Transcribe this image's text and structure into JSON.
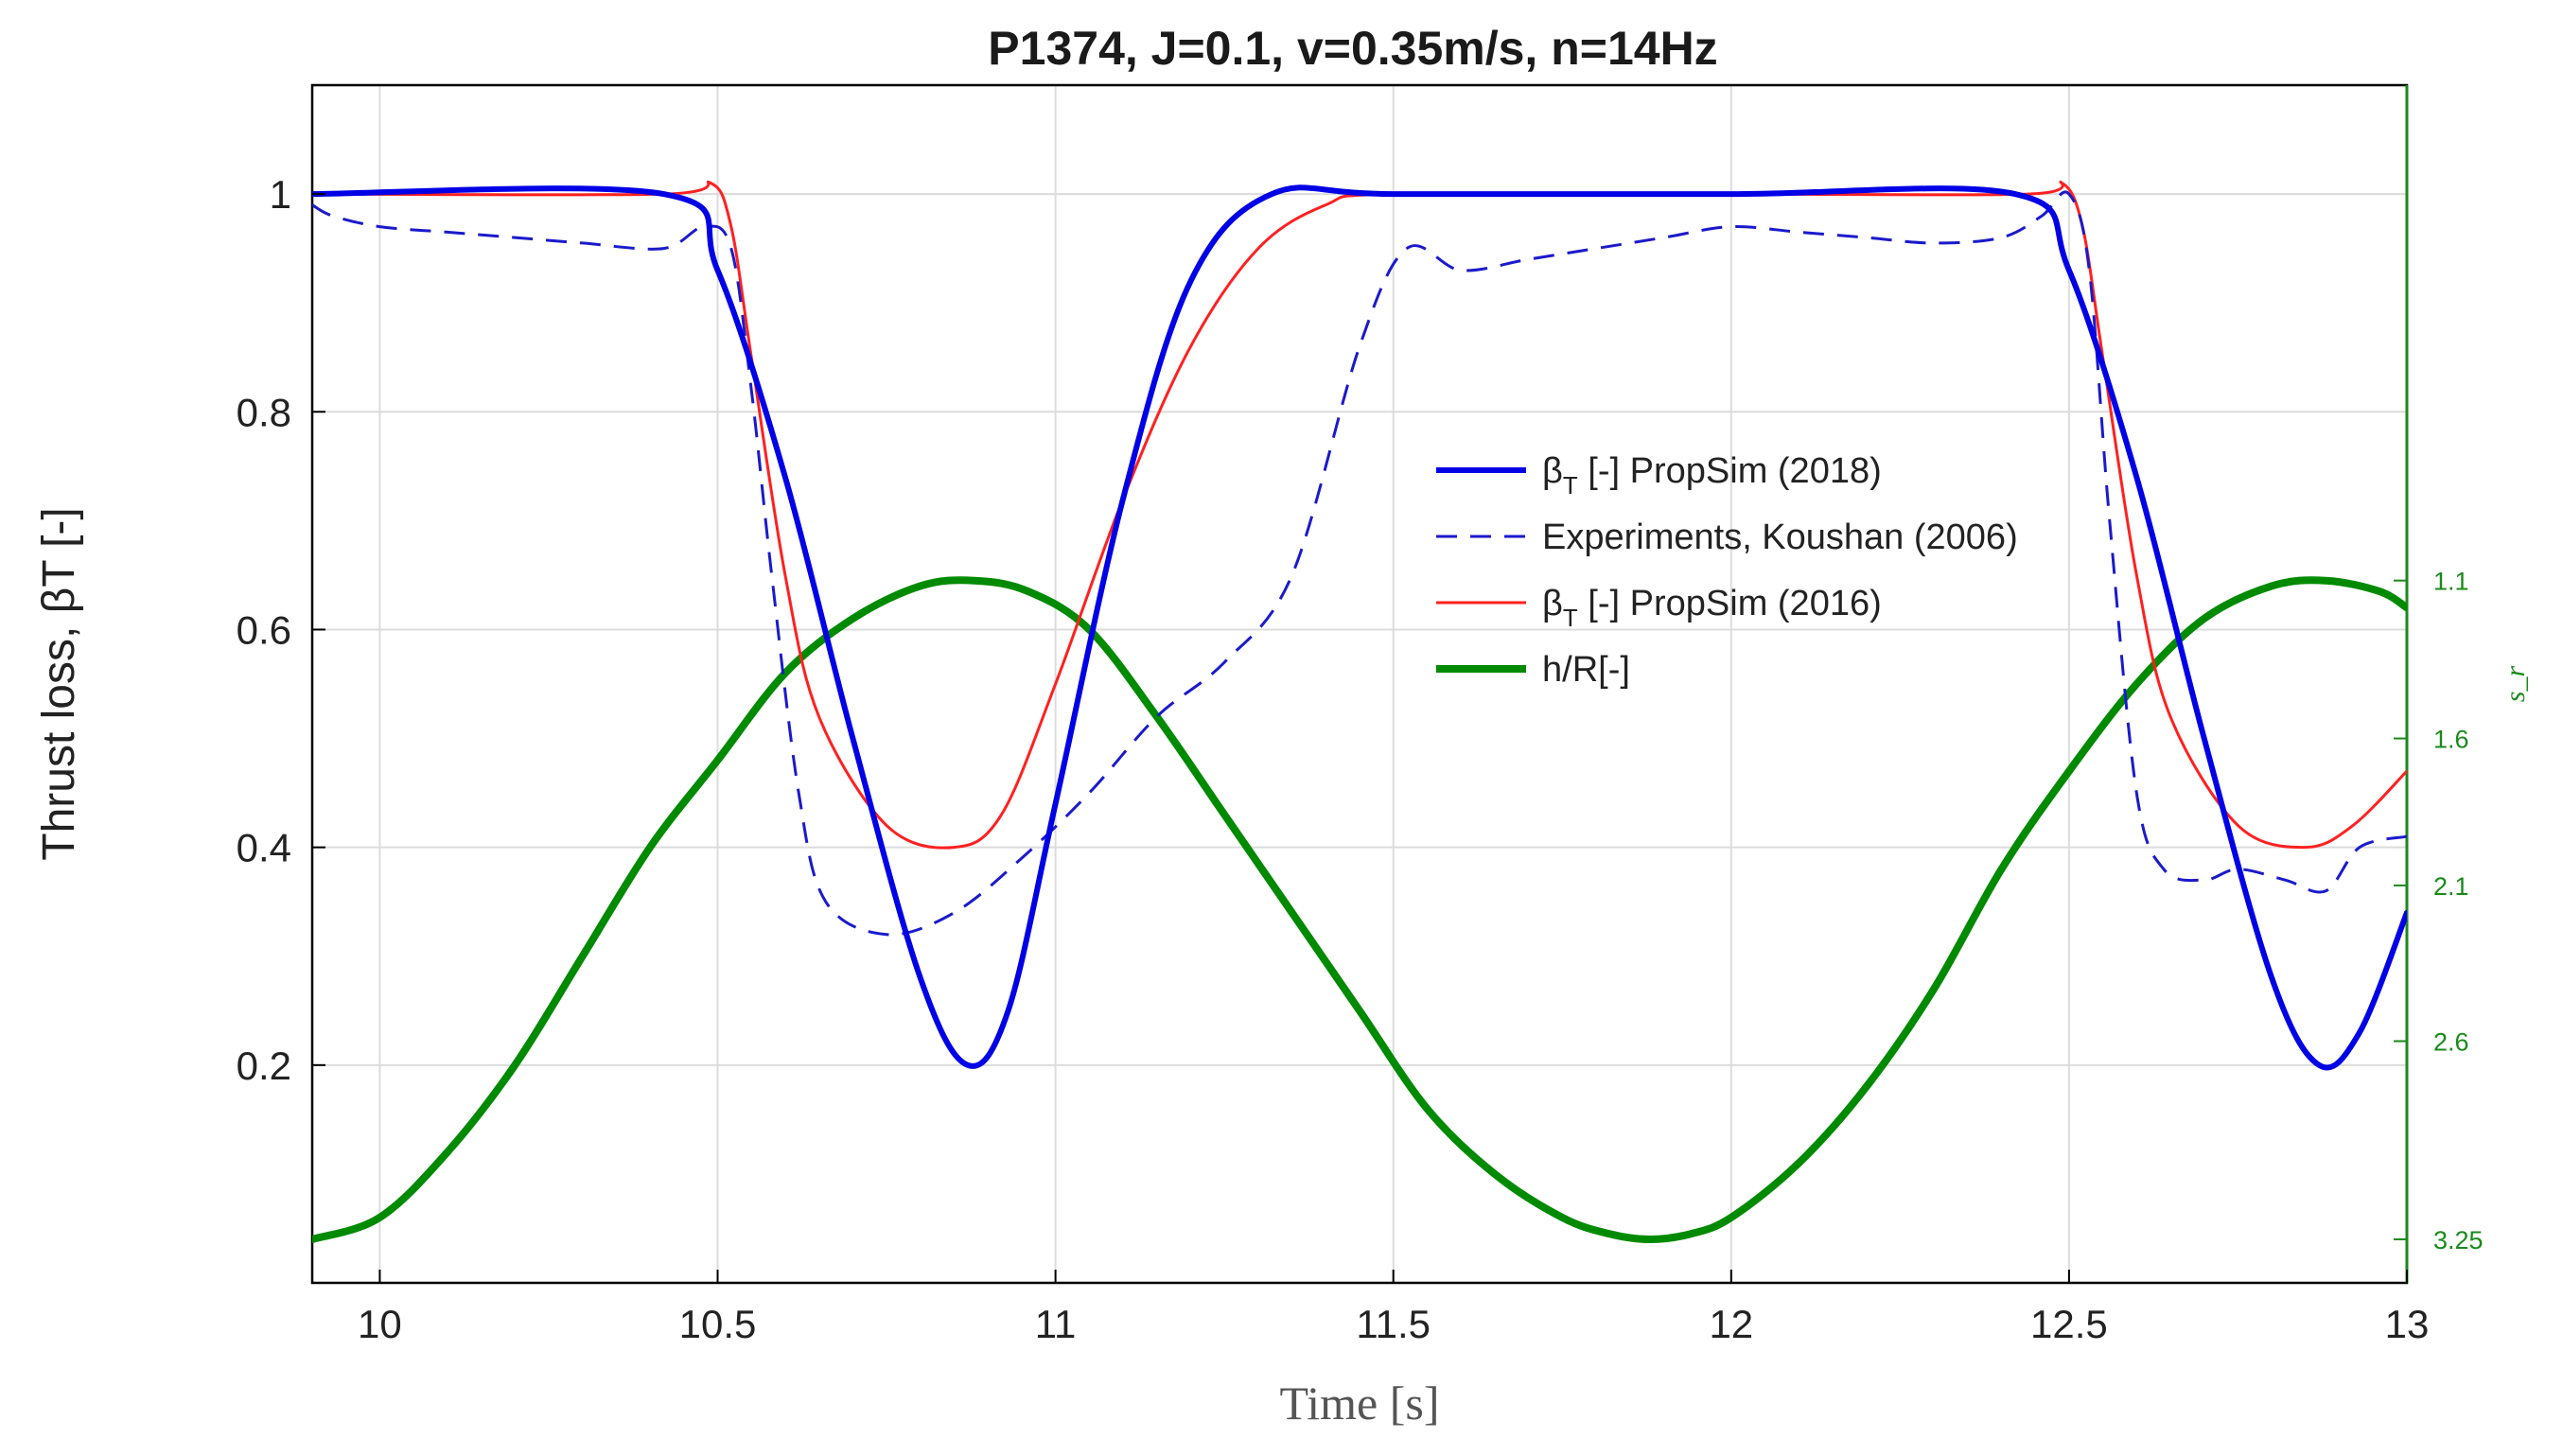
{
  "chart_data": {
    "type": "line",
    "title": "P1374, J=0.1, v=0.35m/s, n=14Hz",
    "xlabel": "Time [s]",
    "ylabel": "Thrust loss, βT [-]",
    "y2label": "s_r",
    "xlim": [
      9.9,
      13.0
    ],
    "ylim": [
      0.0,
      1.1
    ],
    "xticks": [
      10,
      10.5,
      11,
      11.5,
      12,
      12.5,
      13
    ],
    "xtick_labels": [
      "10",
      "10.5",
      "11",
      "11.5",
      "12",
      "12.5",
      "13"
    ],
    "yticks": [
      0.2,
      0.4,
      0.6,
      0.8,
      1.0
    ],
    "ytick_labels": [
      "0.2",
      "0.4",
      "0.6",
      "0.8",
      "1"
    ],
    "y2ticks": [
      {
        "label": "1.1",
        "y": 0.645
      },
      {
        "label": "1.6",
        "y": 0.5
      },
      {
        "label": "2.1",
        "y": 0.365
      },
      {
        "label": "2.6",
        "y": 0.222
      },
      {
        "label": "3.25",
        "y": 0.04
      }
    ],
    "grid": true,
    "legend_position": "center-right",
    "series": [
      {
        "name": "βT [-] PropSim (2018)",
        "legend_main": "β",
        "legend_sub": "T",
        "legend_rest": " [-] PropSim (2018)",
        "color": "#0000e6",
        "style": "solid",
        "width": 6,
        "x": [
          9.9,
          10.42,
          10.5,
          10.6,
          10.7,
          10.8,
          10.87,
          10.93,
          11.0,
          11.1,
          11.2,
          11.32,
          11.5,
          12.0,
          12.42,
          12.5,
          12.6,
          12.7,
          12.8,
          12.87,
          12.93,
          13.0
        ],
        "y": [
          1.0,
          1.0,
          0.93,
          0.74,
          0.5,
          0.28,
          0.2,
          0.25,
          0.44,
          0.72,
          0.92,
          1.0,
          1.0,
          1.0,
          1.0,
          0.93,
          0.74,
          0.5,
          0.28,
          0.2,
          0.23,
          0.34
        ]
      },
      {
        "name": "Experiments, Koushan (2006)",
        "legend_main": "Experiments, Koushan (2006)",
        "color": "#1a1acc",
        "style": "dashed",
        "width": 3,
        "x": [
          9.9,
          9.93,
          10.0,
          10.1,
          10.2,
          10.3,
          10.42,
          10.48,
          10.52,
          10.55,
          10.58,
          10.62,
          10.66,
          10.75,
          10.85,
          10.95,
          11.05,
          11.15,
          11.25,
          11.35,
          11.45,
          11.52,
          11.6,
          11.7,
          11.8,
          11.9,
          12.0,
          12.1,
          12.2,
          12.3,
          12.4,
          12.46,
          12.5,
          12.53,
          12.56,
          12.6,
          12.64,
          12.7,
          12.75,
          12.82,
          12.88,
          12.93,
          13.0
        ],
        "y": [
          0.99,
          0.98,
          0.97,
          0.965,
          0.96,
          0.955,
          0.95,
          0.97,
          0.95,
          0.82,
          0.65,
          0.45,
          0.35,
          0.32,
          0.34,
          0.39,
          0.45,
          0.52,
          0.57,
          0.65,
          0.86,
          0.95,
          0.93,
          0.94,
          0.95,
          0.96,
          0.97,
          0.965,
          0.96,
          0.955,
          0.96,
          0.98,
          1.0,
          0.93,
          0.7,
          0.45,
          0.38,
          0.37,
          0.38,
          0.37,
          0.36,
          0.4,
          0.41
        ]
      },
      {
        "name": "βT [-] PropSim (2016)",
        "legend_main": "β",
        "legend_sub": "T",
        "legend_rest": " [-] PropSim (2016)",
        "color": "#ff2020",
        "style": "solid",
        "width": 3,
        "x": [
          9.9,
          10.42,
          10.49,
          10.52,
          10.55,
          10.6,
          10.65,
          10.75,
          10.85,
          10.92,
          11.0,
          11.1,
          11.2,
          11.3,
          11.4,
          11.5,
          12.0,
          12.44,
          12.49,
          12.52,
          12.55,
          12.6,
          12.65,
          12.75,
          12.85,
          12.92,
          13.0
        ],
        "y": [
          1.0,
          1.0,
          1.01,
          0.97,
          0.85,
          0.65,
          0.52,
          0.42,
          0.4,
          0.43,
          0.55,
          0.72,
          0.86,
          0.95,
          0.99,
          1.0,
          1.0,
          1.0,
          1.01,
          0.97,
          0.85,
          0.65,
          0.52,
          0.42,
          0.4,
          0.42,
          0.47
        ]
      },
      {
        "name": "h/R[-]",
        "legend_main": "h/R[-]",
        "color": "#008a00",
        "style": "solid",
        "width": 8,
        "x": [
          9.9,
          10.0,
          10.1,
          10.2,
          10.3,
          10.4,
          10.5,
          10.6,
          10.7,
          10.8,
          10.88,
          10.96,
          11.05,
          11.15,
          11.25,
          11.35,
          11.45,
          11.55,
          11.65,
          11.75,
          11.82,
          11.88,
          11.94,
          12.0,
          12.1,
          12.2,
          12.3,
          12.4,
          12.5,
          12.6,
          12.7,
          12.8,
          12.88,
          12.96,
          13.0
        ],
        "y": [
          0.04,
          0.06,
          0.12,
          0.2,
          0.3,
          0.4,
          0.48,
          0.56,
          0.61,
          0.64,
          0.645,
          0.635,
          0.6,
          0.52,
          0.43,
          0.34,
          0.25,
          0.16,
          0.1,
          0.06,
          0.045,
          0.04,
          0.045,
          0.06,
          0.11,
          0.18,
          0.27,
          0.38,
          0.47,
          0.55,
          0.61,
          0.64,
          0.645,
          0.635,
          0.62
        ]
      }
    ]
  }
}
